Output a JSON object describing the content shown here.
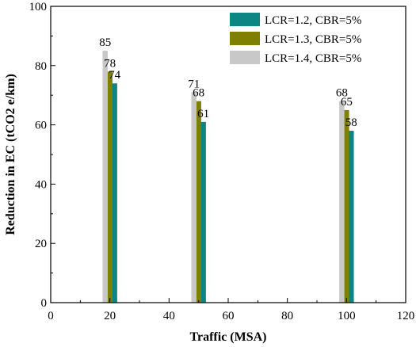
{
  "chart_data": {
    "type": "bar",
    "xlabel": "Traffic (MSA)",
    "ylabel": "Reduction in EC (tCO2 e/km)",
    "xlim": [
      0,
      120
    ],
    "ylim": [
      0,
      100
    ],
    "xticks": [
      0,
      20,
      40,
      60,
      80,
      100,
      120
    ],
    "yticks": [
      0,
      20,
      40,
      60,
      80,
      100
    ],
    "grid": false,
    "legend_position": "top-right",
    "x": [
      20,
      50,
      100
    ],
    "series": [
      {
        "name": "LCR=1.2, CBR=5%",
        "color": "#0e8585",
        "offset": 1.6,
        "values": [
          74,
          61,
          58
        ],
        "labels": [
          "74",
          "61",
          "58"
        ]
      },
      {
        "name": "LCR=1.3, CBR=5%",
        "color": "#808000",
        "offset": 0,
        "values": [
          78,
          68,
          65
        ],
        "labels": [
          "78",
          "68",
          "65"
        ]
      },
      {
        "name": "LCR=1.4, CBR=5%",
        "color": "#c8c8c8",
        "offset": -1.6,
        "values": [
          85,
          71,
          68
        ],
        "labels": [
          "85",
          "71",
          "68"
        ]
      }
    ]
  }
}
